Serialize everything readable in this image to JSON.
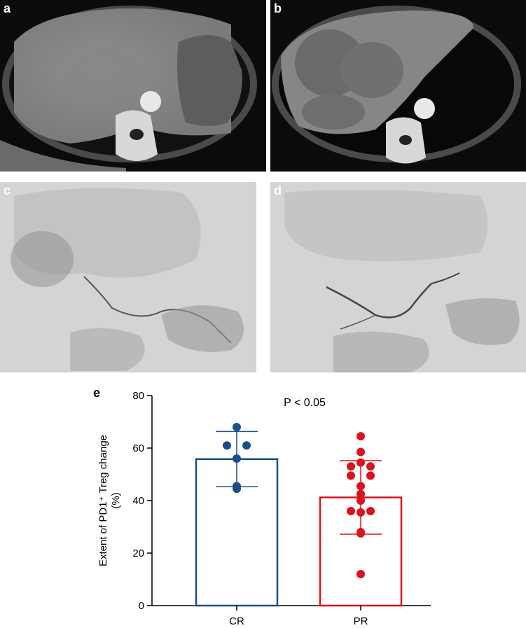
{
  "panels": {
    "a": "a",
    "b": "b",
    "c": "c",
    "d": "d"
  },
  "chart_data": {
    "type": "bar",
    "panel_label": "e",
    "categories": [
      "CR",
      "PR"
    ],
    "values": [
      55.8,
      41.2
    ],
    "error_sd": [
      10.5,
      14.0
    ],
    "points": [
      [
        68,
        61,
        61,
        56,
        44.5,
        45.5
      ],
      [
        64.5,
        58.5,
        54.5,
        53,
        53,
        49.5,
        49.5,
        45.5,
        42.5,
        40,
        36,
        35.5,
        36,
        27.5,
        28,
        12
      ]
    ],
    "colors": [
      "#1a4f8a",
      "#d7141f"
    ],
    "ylabel_line1": "Extent of PD1⁺ Treg change",
    "ylabel_line2": "(%)",
    "yticks": [
      0,
      20,
      40,
      60,
      80
    ],
    "ylim": [
      0,
      80
    ],
    "annotation": "P < 0.05",
    "grid": false
  }
}
